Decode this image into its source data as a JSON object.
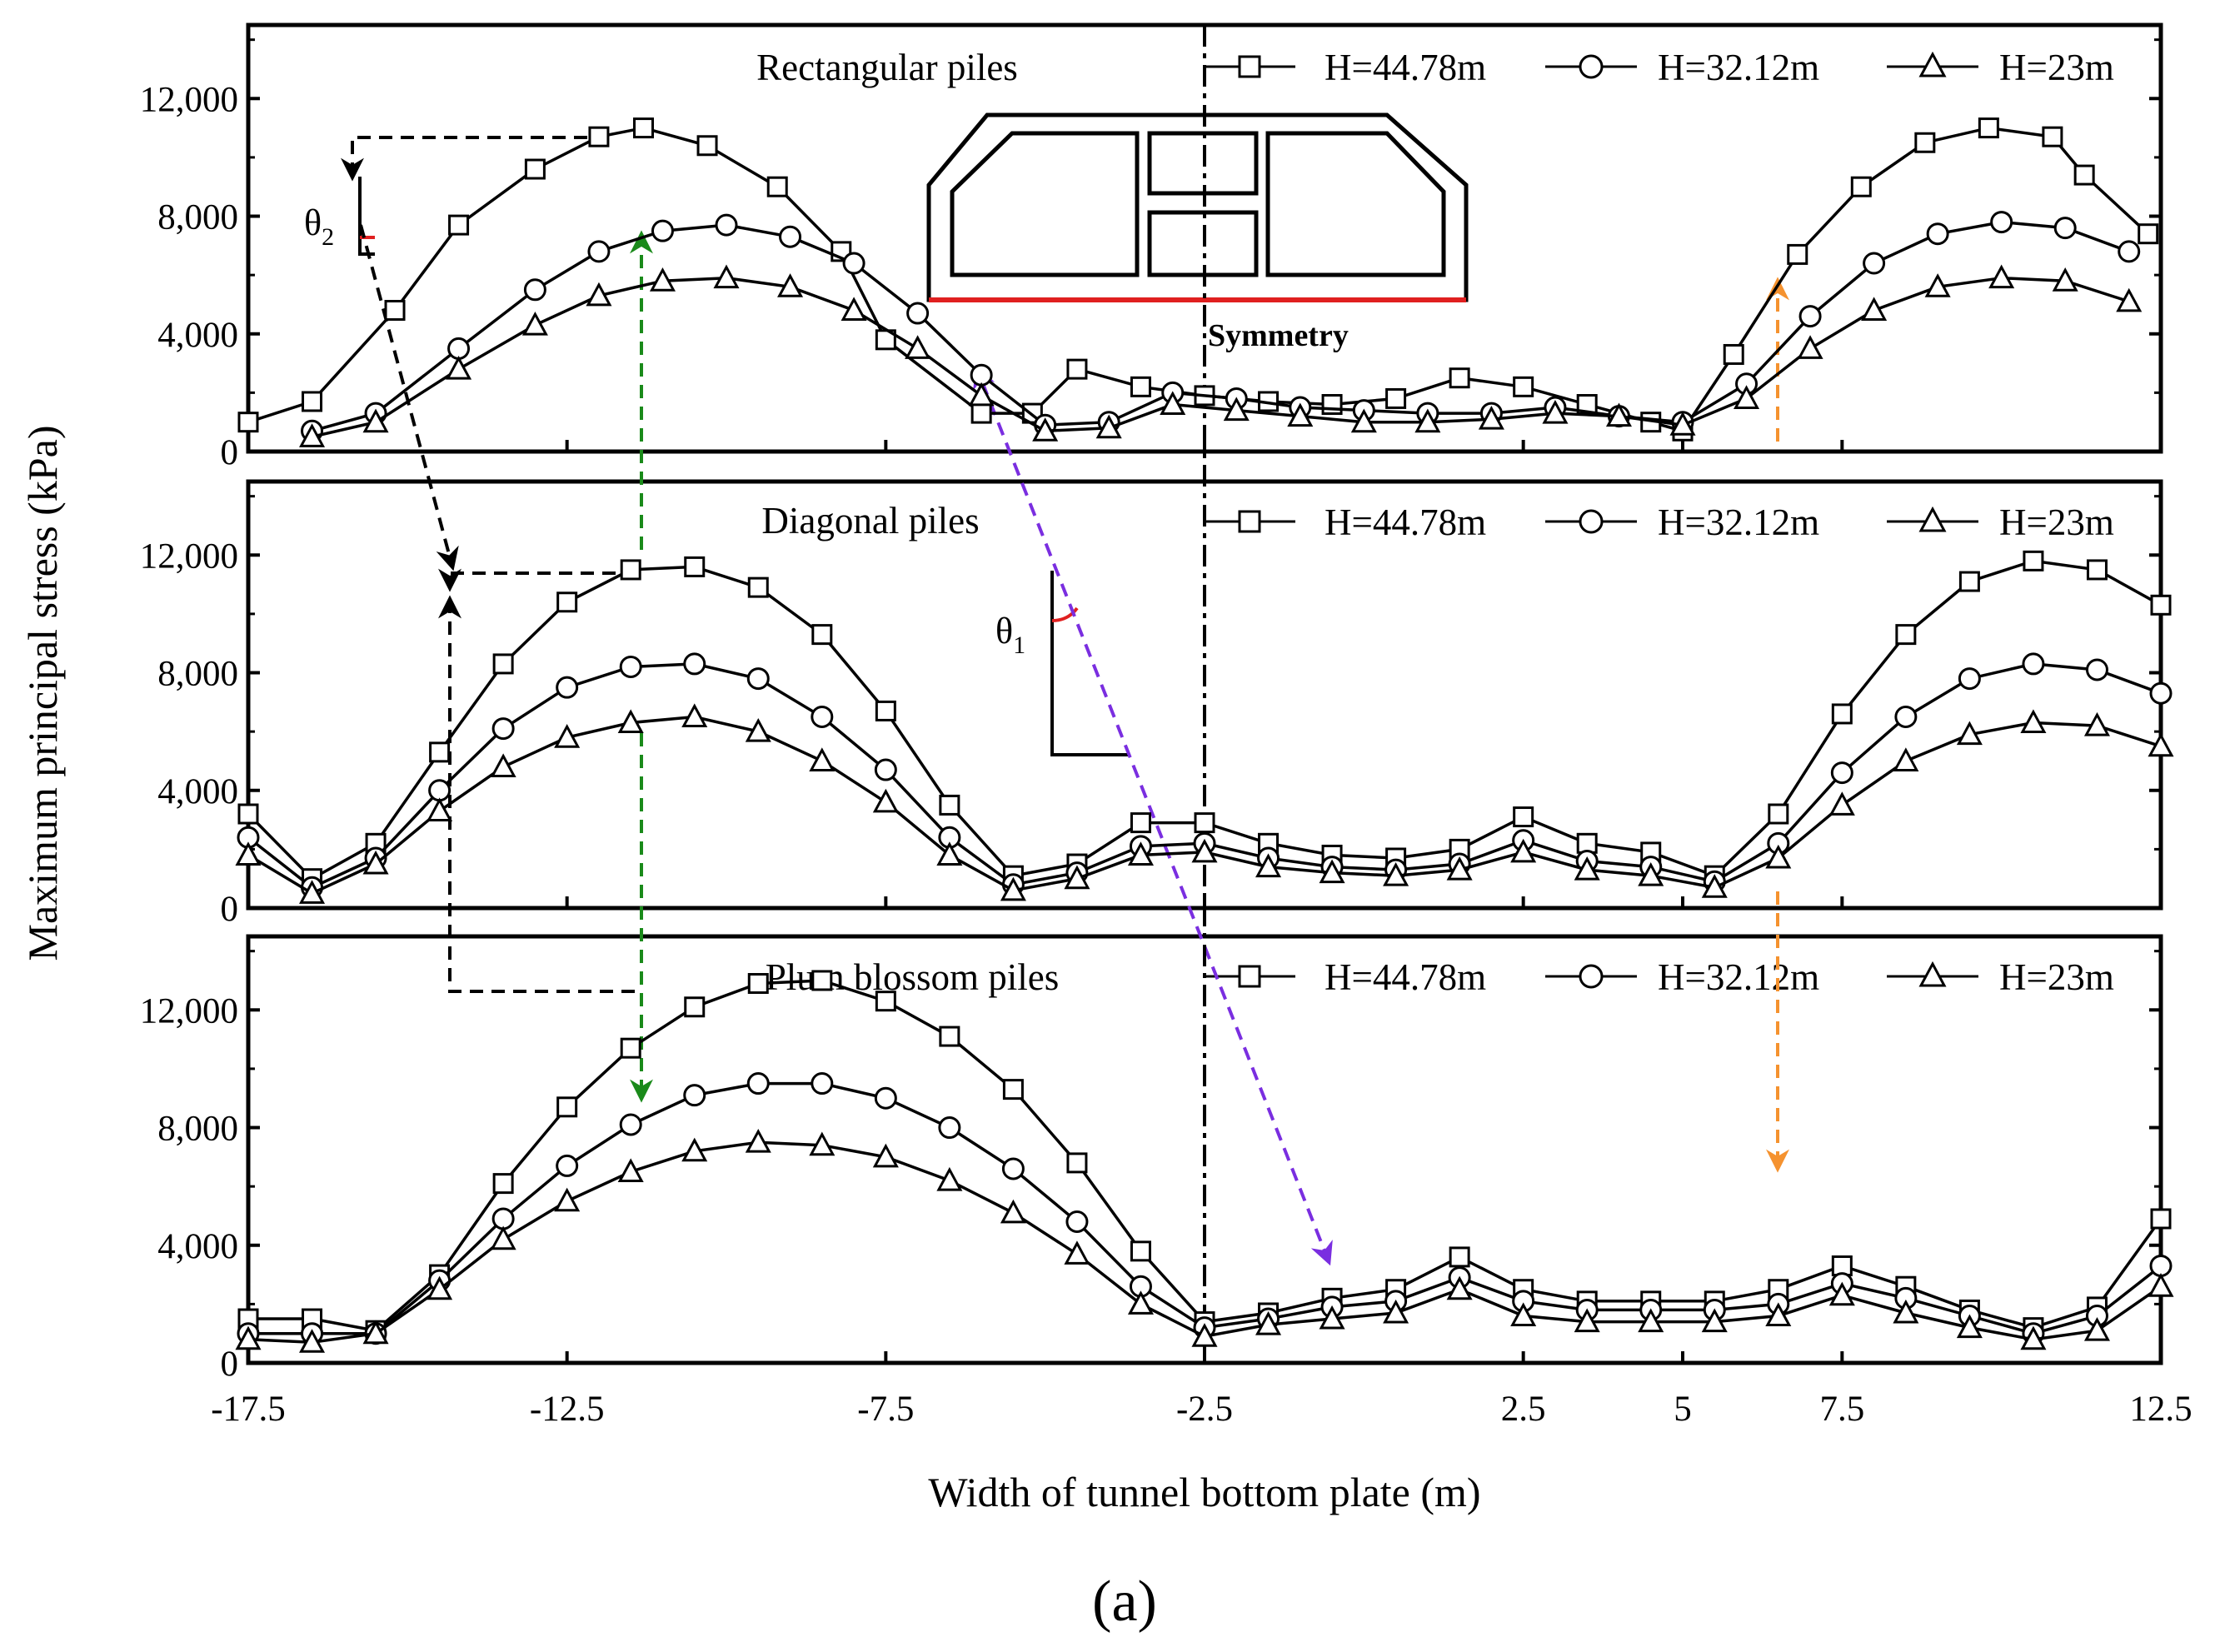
{
  "caption": "(a)",
  "chart_data": {
    "type": "line",
    "xlabel": "Width of tunnel bottom plate (m)",
    "ylabel": "Maximum principal stress (kPa)",
    "xlim": [
      -17.5,
      12.5
    ],
    "ylim": [
      0,
      14500
    ],
    "xticks": [
      -17.5,
      -12.5,
      -7.5,
      -2.5,
      2.5,
      5,
      7.5,
      12.5
    ],
    "xtick_labels": [
      "-17.5",
      "-12.5",
      "-7.5",
      "-2.5",
      "2.5",
      "5",
      "7.5",
      "12.5"
    ],
    "yticks": [
      0,
      4000,
      8000,
      12000
    ],
    "ytick_labels": [
      "0",
      "4,000",
      "8,000",
      "12,000"
    ],
    "symmetry_label": "Symmetry",
    "theta_labels": {
      "theta1": "θ",
      "theta1_sub": "1",
      "theta2": "θ",
      "theta2_sub": "2"
    },
    "legend": [
      "H=44.78m",
      "H=32.12m",
      "H=23m"
    ],
    "panels": [
      {
        "title": "Rectangular piles",
        "series": [
          {
            "name": "H=44.78m",
            "marker": "square",
            "x": [
              -17.5,
              -16.5,
              -15.2,
              -14.2,
              -13.0,
              -12.0,
              -11.3,
              -10.3,
              -9.2,
              -8.2,
              -7.5,
              -6.0,
              -5.2,
              -4.5,
              -3.5,
              -2.5,
              -1.5,
              -0.5,
              0.5,
              1.5,
              2.5,
              3.5,
              4.5,
              5.0,
              5.8,
              6.8,
              7.8,
              8.8,
              9.8,
              10.8,
              11.3,
              12.3
            ],
            "values": [
              1000,
              1700,
              4800,
              7700,
              9600,
              10700,
              11000,
              10400,
              9000,
              6800,
              3800,
              1300,
              1300,
              2800,
              2200,
              1900,
              1700,
              1600,
              1800,
              2500,
              2200,
              1600,
              1000,
              700,
              3300,
              6700,
              9000,
              10500,
              11000,
              10700,
              9400,
              7400
            ]
          },
          {
            "name": "H=32.12m",
            "marker": "circle",
            "x": [
              -16.5,
              -15.5,
              -14.2,
              -13.0,
              -12.0,
              -11.0,
              -10.0,
              -9.0,
              -8.0,
              -7.0,
              -6.0,
              -5.0,
              -4.0,
              -3.0,
              -2.0,
              -1.0,
              0.0,
              1.0,
              2.0,
              3.0,
              4.0,
              5.0,
              6.0,
              7.0,
              8.0,
              9.0,
              10.0,
              11.0,
              12.0
            ],
            "values": [
              700,
              1300,
              3500,
              5500,
              6800,
              7500,
              7700,
              7300,
              6400,
              4700,
              2600,
              900,
              1000,
              2000,
              1800,
              1500,
              1400,
              1300,
              1300,
              1500,
              1200,
              1000,
              2300,
              4600,
              6400,
              7400,
              7800,
              7600,
              6800
            ]
          },
          {
            "name": "H=23m",
            "marker": "triangle",
            "x": [
              -16.5,
              -15.5,
              -14.2,
              -13.0,
              -12.0,
              -11.0,
              -10.0,
              -9.0,
              -8.0,
              -7.0,
              -6.0,
              -5.0,
              -4.0,
              -3.0,
              -2.0,
              -1.0,
              0.0,
              1.0,
              2.0,
              3.0,
              4.0,
              5.0,
              6.0,
              7.0,
              8.0,
              9.0,
              10.0,
              11.0,
              12.0
            ],
            "values": [
              500,
              1000,
              2800,
              4300,
              5300,
              5800,
              5900,
              5600,
              4800,
              3500,
              1900,
              700,
              800,
              1600,
              1400,
              1200,
              1000,
              1000,
              1100,
              1300,
              1200,
              900,
              1800,
              3500,
              4800,
              5600,
              5900,
              5800,
              5100
            ]
          }
        ]
      },
      {
        "title": "Diagonal piles",
        "series": [
          {
            "name": "H=44.78m",
            "marker": "square",
            "x": [
              -17.5,
              -16.5,
              -15.5,
              -14.5,
              -13.5,
              -12.5,
              -11.5,
              -10.5,
              -9.5,
              -8.5,
              -7.5,
              -6.5,
              -5.5,
              -4.5,
              -3.5,
              -2.5,
              -1.5,
              -0.5,
              0.5,
              1.5,
              2.5,
              3.5,
              4.5,
              5.5,
              6.5,
              7.5,
              8.5,
              9.5,
              10.5,
              11.5,
              12.5
            ],
            "values": [
              3200,
              1000,
              2200,
              5300,
              8300,
              10400,
              11500,
              11600,
              10900,
              9300,
              6700,
              3500,
              1100,
              1500,
              2900,
              2900,
              2200,
              1800,
              1700,
              2000,
              3100,
              2200,
              1900,
              1100,
              3200,
              6600,
              9300,
              11100,
              11800,
              11500,
              10300
            ]
          },
          {
            "name": "H=32.12m",
            "marker": "circle",
            "x": [
              -17.5,
              -16.5,
              -15.5,
              -14.5,
              -13.5,
              -12.5,
              -11.5,
              -10.5,
              -9.5,
              -8.5,
              -7.5,
              -6.5,
              -5.5,
              -4.5,
              -3.5,
              -2.5,
              -1.5,
              -0.5,
              0.5,
              1.5,
              2.5,
              3.5,
              4.5,
              5.5,
              6.5,
              7.5,
              8.5,
              9.5,
              10.5,
              11.5,
              12.5
            ],
            "values": [
              2400,
              700,
              1700,
              4000,
              6100,
              7500,
              8200,
              8300,
              7800,
              6500,
              4700,
              2400,
              800,
              1200,
              2100,
              2200,
              1700,
              1400,
              1300,
              1500,
              2300,
              1600,
              1400,
              900,
              2200,
              4600,
              6500,
              7800,
              8300,
              8100,
              7300
            ]
          },
          {
            "name": "H=23m",
            "marker": "triangle",
            "x": [
              -17.5,
              -16.5,
              -15.5,
              -14.5,
              -13.5,
              -12.5,
              -11.5,
              -10.5,
              -9.5,
              -8.5,
              -7.5,
              -6.5,
              -5.5,
              -4.5,
              -3.5,
              -2.5,
              -1.5,
              -0.5,
              0.5,
              1.5,
              2.5,
              3.5,
              4.5,
              5.5,
              6.5,
              7.5,
              8.5,
              9.5,
              10.5,
              11.5,
              12.5
            ],
            "values": [
              1800,
              500,
              1500,
              3300,
              4800,
              5800,
              6300,
              6500,
              6000,
              5000,
              3600,
              1800,
              600,
              1000,
              1800,
              1900,
              1400,
              1200,
              1100,
              1300,
              1900,
              1300,
              1100,
              700,
              1700,
              3500,
              5000,
              5900,
              6300,
              6200,
              5500
            ]
          }
        ]
      },
      {
        "title": "Plum blossom piles",
        "series": [
          {
            "name": "H=44.78m",
            "marker": "square",
            "x": [
              -17.5,
              -16.5,
              -15.5,
              -14.5,
              -13.5,
              -12.5,
              -11.5,
              -10.5,
              -9.5,
              -8.5,
              -7.5,
              -6.5,
              -5.5,
              -4.5,
              -3.5,
              -2.5,
              -1.5,
              -0.5,
              0.5,
              1.5,
              2.5,
              3.5,
              4.5,
              5.5,
              6.5,
              7.5,
              8.5,
              9.5,
              10.5,
              11.5,
              12.5
            ],
            "values": [
              1500,
              1500,
              1100,
              3000,
              6100,
              8700,
              10700,
              12100,
              12900,
              13000,
              12300,
              11100,
              9300,
              6800,
              3800,
              1400,
              1700,
              2200,
              2500,
              3600,
              2500,
              2100,
              2100,
              2100,
              2500,
              3300,
              2600,
              1800,
              1200,
              1900,
              4900
            ]
          },
          {
            "name": "H=32.12m",
            "marker": "circle",
            "x": [
              -17.5,
              -16.5,
              -15.5,
              -14.5,
              -13.5,
              -12.5,
              -11.5,
              -10.5,
              -9.5,
              -8.5,
              -7.5,
              -6.5,
              -5.5,
              -4.5,
              -3.5,
              -2.5,
              -1.5,
              -0.5,
              0.5,
              1.5,
              2.5,
              3.5,
              4.5,
              5.5,
              6.5,
              7.5,
              8.5,
              9.5,
              10.5,
              11.5,
              12.5
            ],
            "values": [
              1000,
              1000,
              1000,
              2800,
              4900,
              6700,
              8100,
              9100,
              9500,
              9500,
              9000,
              8000,
              6600,
              4800,
              2600,
              1200,
              1500,
              1900,
              2100,
              2900,
              2100,
              1800,
              1800,
              1800,
              2000,
              2700,
              2200,
              1600,
              1000,
              1600,
              3300
            ]
          },
          {
            "name": "H=23m",
            "marker": "triangle",
            "x": [
              -17.5,
              -16.5,
              -15.5,
              -14.5,
              -13.5,
              -12.5,
              -11.5,
              -10.5,
              -9.5,
              -8.5,
              -7.5,
              -6.5,
              -5.5,
              -4.5,
              -3.5,
              -2.5,
              -1.5,
              -0.5,
              0.5,
              1.5,
              2.5,
              3.5,
              4.5,
              5.5,
              6.5,
              7.5,
              8.5,
              9.5,
              10.5,
              11.5,
              12.5
            ],
            "values": [
              800,
              700,
              1000,
              2500,
              4200,
              5500,
              6500,
              7200,
              7500,
              7400,
              7000,
              6200,
              5100,
              3700,
              2000,
              900,
              1300,
              1500,
              1700,
              2500,
              1600,
              1400,
              1400,
              1400,
              1600,
              2300,
              1700,
              1200,
              800,
              1100,
              2600
            ]
          }
        ]
      }
    ]
  }
}
